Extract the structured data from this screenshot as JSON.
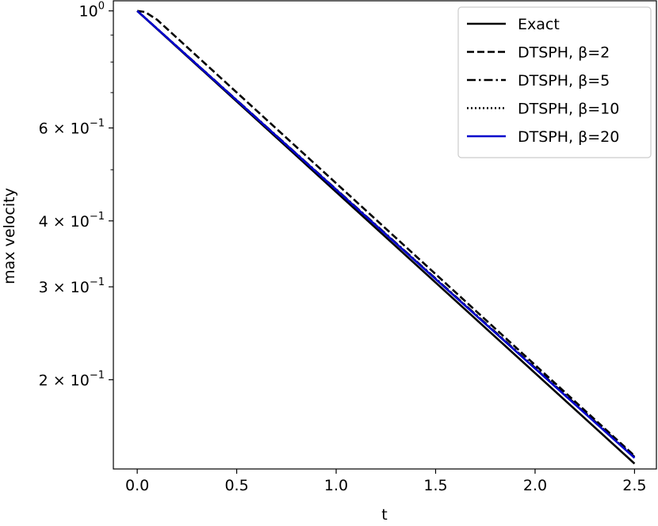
{
  "chart_data": {
    "type": "line",
    "title": "",
    "xlabel": "t",
    "ylabel": "max velocity",
    "xlim": [
      -0.12,
      2.61
    ],
    "ylim": [
      0.1355,
      1.045
    ],
    "yscale": "log",
    "grid": false,
    "legend_position": "top-right",
    "x_ticks": [
      {
        "value": 0.0,
        "label": "0.0"
      },
      {
        "value": 0.5,
        "label": "0.5"
      },
      {
        "value": 1.0,
        "label": "1.0"
      },
      {
        "value": 1.5,
        "label": "1.5"
      },
      {
        "value": 2.0,
        "label": "2.0"
      },
      {
        "value": 2.5,
        "label": "2.5"
      }
    ],
    "y_major_ticks": [
      {
        "value": 1.0,
        "base": "10",
        "exp": "0"
      },
      {
        "value": 0.6,
        "mant": "6",
        "base": "10",
        "exp": "−1"
      },
      {
        "value": 0.4,
        "mant": "4",
        "base": "10",
        "exp": "−1"
      },
      {
        "value": 0.3,
        "mant": "3",
        "base": "10",
        "exp": "−1"
      },
      {
        "value": 0.2,
        "mant": "2",
        "base": "10",
        "exp": "−1"
      }
    ],
    "y_minor_ticks": [
      0.9,
      0.8,
      0.7,
      0.5
    ],
    "series": [
      {
        "name": "Exact",
        "color": "#000000",
        "dash": "solid",
        "points": [
          [
            0.0,
            1.0
          ],
          [
            2.5,
            0.1387
          ]
        ]
      },
      {
        "name": "DTSPH, β=2",
        "color": "#000000",
        "dash": "dashed",
        "points": [
          [
            0.0,
            1.0
          ],
          [
            0.04,
            0.995
          ],
          [
            0.1,
            0.962
          ],
          [
            2.5,
            0.1435
          ]
        ]
      },
      {
        "name": "DTSPH, β=5",
        "color": "#000000",
        "dash": "dashdot",
        "points": [
          [
            0.0,
            1.0
          ],
          [
            2.5,
            0.1428
          ]
        ]
      },
      {
        "name": "DTSPH, β=10",
        "color": "#000000",
        "dash": "dotted",
        "points": [
          [
            0.0,
            1.0
          ],
          [
            2.5,
            0.1425
          ]
        ]
      },
      {
        "name": "DTSPH, β=20",
        "color": "#0000cc",
        "dash": "solid",
        "points": [
          [
            0.0,
            1.0
          ],
          [
            2.5,
            0.1422
          ]
        ]
      }
    ]
  }
}
